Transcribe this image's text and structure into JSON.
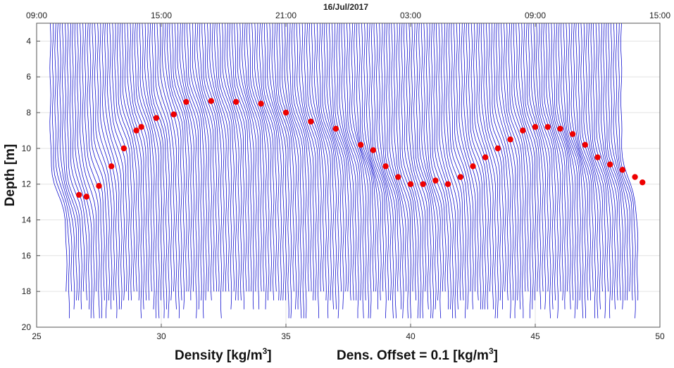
{
  "chart_data": {
    "type": "line",
    "title": "16/Jul/2017",
    "xlabel": "Density [kg/m",
    "xlabel_sup": "3",
    "xlabel_close": "]",
    "offset_label": "Dens. Offset = 0.1 [kg/m",
    "offset_label_sup": "3",
    "offset_label_close": "]",
    "ylabel": "Depth [m]",
    "xlim": [
      25,
      50
    ],
    "ylim": [
      3,
      20
    ],
    "y_inverted": true,
    "grid": true,
    "x_ticks": [
      "25",
      "30",
      "35",
      "40",
      "45",
      "50"
    ],
    "y_ticks": [
      "4",
      "6",
      "8",
      "10",
      "12",
      "14",
      "16",
      "18",
      "20"
    ],
    "top_time_ticks": [
      "09:00",
      "15:00",
      "21:00",
      "03:00",
      "09:00",
      "15:00"
    ],
    "density_offset": 0.1,
    "profile_count": 230,
    "profile_start_x": 26.1,
    "profile_color": "#0000cc",
    "marker_color": "#ee0000",
    "pycnocline_depth": {
      "x": [
        26.7,
        27.0,
        27.5,
        28.0,
        28.5,
        29.0,
        29.2,
        29.8,
        30.5,
        31.0,
        32.0,
        33.0,
        34.0,
        35.0,
        36.0,
        37.0,
        38.0,
        38.5,
        39.0,
        39.5,
        40.0,
        40.5,
        41.0,
        41.5,
        42.0,
        42.5,
        43.0,
        43.5,
        44.0,
        44.5,
        45.0,
        45.5,
        46.0,
        46.5,
        47.0,
        47.5,
        48.0,
        48.5,
        49.0,
        49.3
      ],
      "y": [
        12.6,
        12.7,
        12.1,
        11.0,
        10.0,
        9.0,
        8.8,
        8.3,
        8.1,
        7.4,
        7.35,
        7.4,
        7.5,
        8.0,
        8.5,
        8.9,
        9.8,
        10.1,
        11.0,
        11.6,
        12.0,
        12.0,
        11.8,
        12.0,
        11.6,
        11.0,
        10.5,
        10.0,
        9.5,
        9.0,
        8.8,
        8.8,
        8.9,
        9.2,
        9.8,
        10.5,
        10.9,
        11.2,
        11.6,
        11.9
      ]
    }
  }
}
